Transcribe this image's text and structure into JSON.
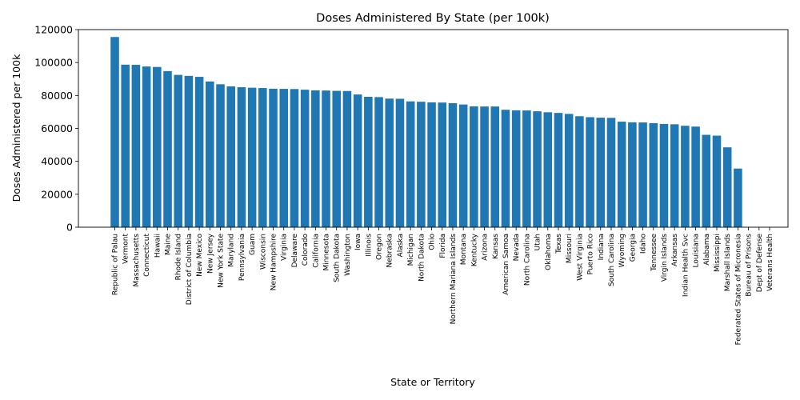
{
  "chart_data": {
    "type": "bar",
    "title": "Doses Administered By State (per 100k)",
    "xlabel": "State or Territory",
    "ylabel": "Doses Administered per 100k",
    "ylim": [
      0,
      120000
    ],
    "yticks": [
      0,
      20000,
      40000,
      60000,
      80000,
      100000,
      120000
    ],
    "bar_color": "#1f77b4",
    "grid": false,
    "categories": [
      "Republic of Palau",
      "Vermont",
      "Massachusetts",
      "Connecticut",
      "Hawaii",
      "Maine",
      "Rhode Island",
      "District of Columbia",
      "New Mexico",
      "New Jersey",
      "New York State",
      "Maryland",
      "Pennsylvania",
      "Guam",
      "Wisconsin",
      "New Hampshire",
      "Virginia",
      "Delaware",
      "Colorado",
      "California",
      "Minnesota",
      "South Dakota",
      "Washington",
      "Iowa",
      "Illinois",
      "Oregon",
      "Nebraska",
      "Alaska",
      "Michigan",
      "North Dakota",
      "Ohio",
      "Florida",
      "Northern Mariana Islands",
      "Montana",
      "Kentucky",
      "Arizona",
      "Kansas",
      "American Samoa",
      "Nevada",
      "North Carolina",
      "Utah",
      "Oklahoma",
      "Texas",
      "Missouri",
      "West Virginia",
      "Puerto Rico",
      "Indiana",
      "South Carolina",
      "Wyoming",
      "Georgia",
      "Idaho",
      "Tennessee",
      "Virgin Islands",
      "Arkansas",
      "Indian Health Svc",
      "Louisiana",
      "Alabama",
      "Mississippi",
      "Marshall Islands",
      "Federated States of Micronesia",
      "Bureau of Prisons",
      "Dept of Defense",
      "Veterans Health"
    ],
    "values": [
      115500,
      98700,
      98600,
      97600,
      97300,
      94800,
      92500,
      91900,
      91300,
      88500,
      86800,
      85500,
      85000,
      84700,
      84500,
      84100,
      84000,
      83900,
      83500,
      83100,
      83000,
      82800,
      82700,
      80600,
      79200,
      79000,
      78100,
      78000,
      76400,
      76200,
      75800,
      75700,
      75300,
      74500,
      73400,
      73300,
      73300,
      71300,
      71000,
      70900,
      70400,
      69800,
      69400,
      68800,
      67400,
      66800,
      66500,
      66400,
      64100,
      63700,
      63600,
      63200,
      62700,
      62500,
      61600,
      61100,
      56100,
      55600,
      48500,
      35600,
      0,
      0,
      0
    ]
  }
}
